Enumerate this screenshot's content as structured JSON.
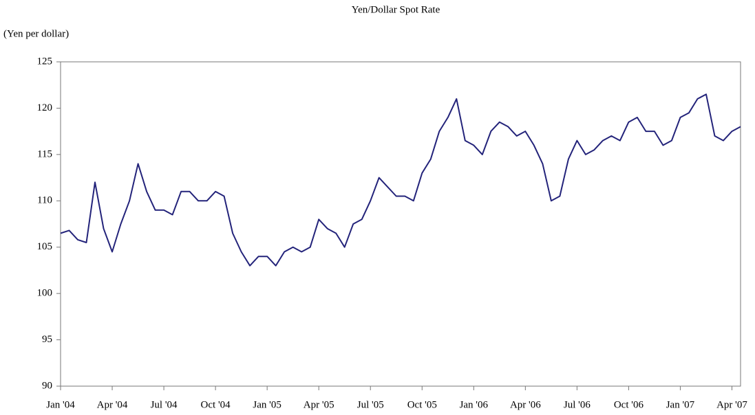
{
  "chart_data": {
    "type": "line",
    "title": "Yen/Dollar Spot Rate",
    "y_label": "(Yen per dollar)",
    "categories": [
      "Jan '04",
      null,
      null,
      null,
      null,
      null,
      "Apr '04",
      null,
      null,
      null,
      null,
      null,
      "Jul '04",
      null,
      null,
      null,
      null,
      null,
      "Oct '04",
      null,
      null,
      null,
      null,
      null,
      "Jan '05",
      null,
      null,
      null,
      null,
      null,
      "Apr '05",
      null,
      null,
      null,
      null,
      null,
      "Jul '05",
      null,
      null,
      null,
      null,
      null,
      "Oct '05",
      null,
      null,
      null,
      null,
      null,
      "Jan '06",
      null,
      null,
      null,
      null,
      null,
      "Apr '06",
      null,
      null,
      null,
      null,
      null,
      "Jul '06",
      null,
      null,
      null,
      null,
      null,
      "Oct '06",
      null,
      null,
      null,
      null,
      null,
      "Jan '07",
      null,
      null,
      null,
      null,
      null,
      "Apr '07",
      null
    ],
    "series": [
      {
        "name": "Yen/Dollar",
        "color": "#23237a",
        "values": [
          106.5,
          106.8,
          105.8,
          105.5,
          112,
          107,
          104.5,
          107.5,
          110,
          114,
          111,
          109,
          109,
          108.5,
          111,
          111,
          110,
          110,
          111,
          110.5,
          106.5,
          104.5,
          103,
          104,
          104,
          103,
          104.5,
          105,
          104.5,
          105,
          108,
          107,
          106.5,
          105,
          107.5,
          108,
          110,
          112.5,
          111.5,
          110.5,
          110.5,
          110,
          113,
          114.5,
          117.5,
          119,
          121,
          116.5,
          116,
          115,
          117.5,
          118.5,
          118,
          117,
          117.5,
          116,
          114,
          110,
          110.5,
          114.5,
          116.5,
          115,
          115.5,
          116.5,
          117,
          116.5,
          118.5,
          119,
          117.5,
          117.5,
          116,
          116.5,
          119,
          119.5,
          121,
          121.5,
          117,
          116.5,
          117.5,
          118
        ]
      }
    ],
    "ylim": [
      90,
      125
    ],
    "yticks": [
      90,
      95,
      100,
      105,
      110,
      115,
      120,
      125
    ],
    "grid": false
  }
}
